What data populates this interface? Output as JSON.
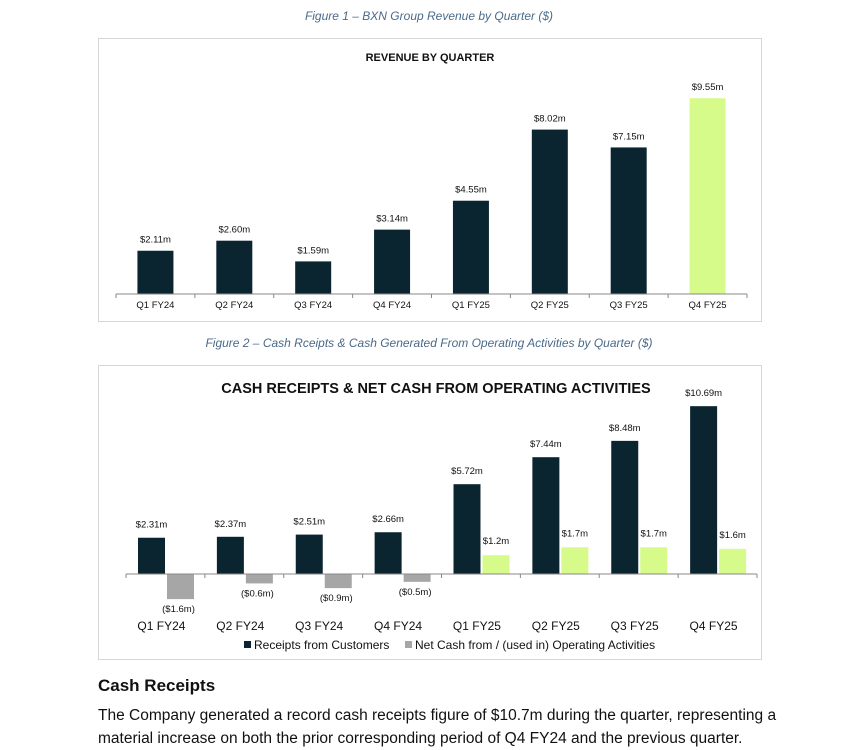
{
  "figure1": {
    "caption": "Figure 1 – BXN Group Revenue by Quarter ($)",
    "chart_data": {
      "type": "bar",
      "title": "REVENUE BY QUARTER",
      "categories": [
        "Q1 FY24",
        "Q2 FY24",
        "Q3 FY24",
        "Q4 FY24",
        "Q1 FY25",
        "Q2 FY25",
        "Q3 FY25",
        "Q4 FY25"
      ],
      "values": [
        2.11,
        2.6,
        1.59,
        3.14,
        4.55,
        8.02,
        7.15,
        9.55
      ],
      "data_labels": [
        "$2.11m",
        "$2.60m",
        "$1.59m",
        "$3.14m",
        "$4.55m",
        "$8.02m",
        "$7.15m",
        "$9.55m"
      ],
      "ylim": [
        0,
        10
      ],
      "xlabel": "",
      "ylabel": "",
      "colors": {
        "default": "#0b2530",
        "highlight": "#d6fb8a"
      },
      "highlight_index": 7
    }
  },
  "figure2": {
    "caption": "Figure 2 – Cash Rceipts & Cash Generated From Operating Activities by Quarter ($)",
    "chart_data": {
      "type": "bar",
      "title": "CASH RECEIPTS & NET CASH FROM OPERATING ACTIVITIES",
      "categories": [
        "Q1 FY24",
        "Q2 FY24",
        "Q3 FY24",
        "Q4 FY24",
        "Q1 FY25",
        "Q2 FY25",
        "Q3 FY25",
        "Q4 FY25"
      ],
      "series": [
        {
          "name": "Receipts from Customers",
          "values": [
            2.31,
            2.37,
            2.51,
            2.66,
            5.72,
            7.44,
            8.48,
            10.69
          ],
          "labels": [
            "$2.31m",
            "$2.37m",
            "$2.51m",
            "$2.66m",
            "$5.72m",
            "$7.44m",
            "$8.48m",
            "$10.69m"
          ]
        },
        {
          "name": "Net Cash from / (used in) Operating Activities",
          "values": [
            -1.6,
            -0.6,
            -0.9,
            -0.5,
            1.2,
            1.7,
            1.7,
            1.6
          ],
          "labels": [
            "($1.6m)",
            "($0.6m)",
            "($0.9m)",
            "($0.5m)",
            "$1.2m",
            "$1.7m",
            "$1.7m",
            "$1.6m"
          ]
        }
      ],
      "ylim": [
        -2,
        12
      ],
      "legend_position": "bottom",
      "colors": {
        "receipts": "#0b2530",
        "net_negative": "#a6a6a6",
        "net_positive": "#d6fb8a"
      }
    }
  },
  "section": {
    "heading": "Cash Receipts",
    "paragraph": "The Company generated a record cash receipts figure of $10.7m during the quarter, representing a material increase on both the prior corresponding period of Q4 FY24 and the previous quarter."
  }
}
